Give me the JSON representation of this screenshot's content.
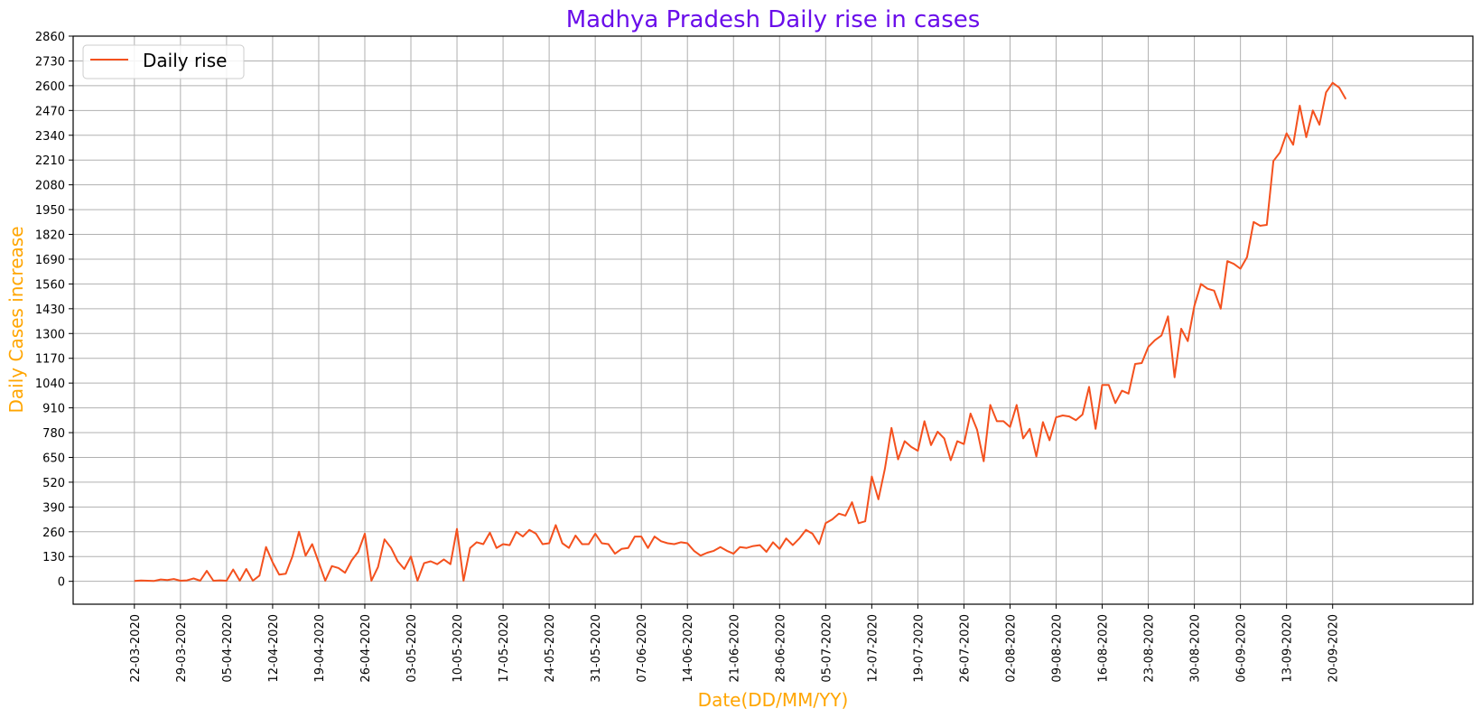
{
  "chart_data": {
    "type": "line",
    "title": "Madhya Pradesh Daily rise in cases",
    "xlabel": "Date(DD/MM/YY)",
    "ylabel": "Daily Cases increase",
    "ylim": [
      -120,
      2860
    ],
    "yticks": [
      0,
      130,
      260,
      390,
      520,
      650,
      780,
      910,
      1040,
      1170,
      1300,
      1430,
      1560,
      1690,
      1820,
      1950,
      2080,
      2210,
      2340,
      2470,
      2600,
      2730,
      2860
    ],
    "xtick_labels": [
      "22-03-2020",
      "29-03-2020",
      "05-04-2020",
      "12-04-2020",
      "19-04-2020",
      "26-04-2020",
      "03-05-2020",
      "10-05-2020",
      "17-05-2020",
      "24-05-2020",
      "31-05-2020",
      "07-06-2020",
      "14-06-2020",
      "21-06-2020",
      "28-06-2020",
      "05-07-2020",
      "12-07-2020",
      "19-07-2020",
      "26-07-2020",
      "02-08-2020",
      "09-08-2020",
      "16-08-2020",
      "23-08-2020",
      "30-08-2020",
      "06-09-2020",
      "13-09-2020",
      "20-09-2020"
    ],
    "xtick_step_days": 7,
    "grid": true,
    "legend": {
      "position": "top-left",
      "entries": [
        "Daily rise"
      ]
    },
    "colors": {
      "line": "#f4511e",
      "title": "#6a0dea",
      "axis_label": "#ffa500",
      "grid": "#b0b0b0"
    },
    "series": [
      {
        "name": "Daily rise",
        "start_date": "22-03-2020",
        "values": [
          2,
          4,
          3,
          2,
          10,
          7,
          12,
          3,
          5,
          15,
          3,
          55,
          3,
          5,
          3,
          62,
          3,
          65,
          3,
          30,
          180,
          100,
          35,
          40,
          130,
          260,
          135,
          195,
          100,
          3,
          80,
          70,
          45,
          110,
          155,
          250,
          3,
          75,
          220,
          175,
          105,
          65,
          130,
          3,
          95,
          105,
          90,
          115,
          90,
          275,
          3,
          175,
          205,
          195,
          255,
          175,
          195,
          190,
          260,
          235,
          270,
          250,
          195,
          200,
          295,
          200,
          175,
          240,
          195,
          195,
          250,
          200,
          195,
          145,
          170,
          175,
          235,
          235,
          175,
          235,
          210,
          200,
          195,
          205,
          200,
          160,
          135,
          150,
          160,
          180,
          160,
          145,
          180,
          175,
          185,
          190,
          155,
          205,
          170,
          225,
          190,
          225,
          270,
          250,
          195,
          305,
          325,
          355,
          345,
          415,
          305,
          315,
          550,
          430,
          590,
          805,
          640,
          735,
          705,
          685,
          840,
          715,
          785,
          750,
          635,
          735,
          720,
          880,
          795,
          630,
          925,
          840,
          840,
          810,
          925,
          750,
          800,
          655,
          835,
          740,
          860,
          870,
          865,
          845,
          875,
          1020,
          800,
          1030,
          1030,
          935,
          1000,
          985,
          1140,
          1145,
          1230,
          1265,
          1290,
          1390,
          1070,
          1325,
          1260,
          1445,
          1560,
          1535,
          1525,
          1430,
          1680,
          1665,
          1640,
          1700,
          1885,
          1865,
          1870,
          2205,
          2250,
          2350,
          2290,
          2495,
          2330,
          2470,
          2395,
          2565,
          2615,
          2590,
          2530
        ]
      }
    ]
  }
}
